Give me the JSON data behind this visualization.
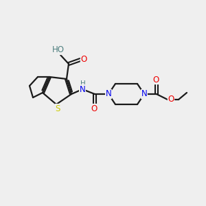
{
  "background_color": "#efefef",
  "bond_color": "#1a1a1a",
  "atom_colors": {
    "O": "#ee0000",
    "N": "#0000ee",
    "S": "#cccc00",
    "H_teal": "#508080",
    "C": "#1a1a1a"
  },
  "figsize": [
    3.0,
    3.0
  ],
  "dpi": 100
}
